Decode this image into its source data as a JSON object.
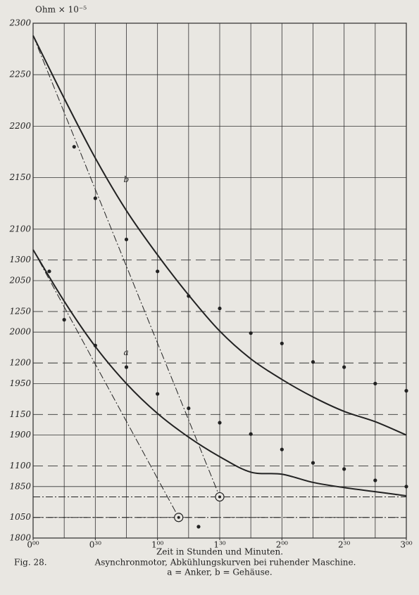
{
  "chart_data": {
    "type": "line",
    "ylabel": "Ohm × 10⁻⁵",
    "xlabel": "Zeit in Stunden und Minuten.",
    "caption_fig": "Fig. 28.",
    "caption_title": "Asynchronmotor, Abkühlungskurven bei ruhender Maschine.",
    "caption_legend": "a = Anker, b = Gehäuse.",
    "xlim": [
      0,
      3
    ],
    "xticks": [
      {
        "value": 0,
        "label": "0⁰⁰"
      },
      {
        "value": 0.5,
        "label": "0³⁰"
      },
      {
        "value": 1,
        "label": "1⁰⁰"
      },
      {
        "value": 1.5,
        "label": "1³⁰"
      },
      {
        "value": 2,
        "label": "2⁰⁰"
      },
      {
        "value": 2.5,
        "label": "2³⁰"
      },
      {
        "value": 3,
        "label": "3⁰⁰"
      }
    ],
    "xgrid": [
      0,
      0.25,
      0.5,
      0.75,
      1,
      1.25,
      1.5,
      1.75,
      2,
      2.25,
      2.5,
      2.75,
      3
    ],
    "ylim": [
      1800,
      2300
    ],
    "yticks": [
      2300,
      2250,
      2200,
      2150,
      2100,
      2050,
      2000,
      1950,
      1900,
      1850,
      1800
    ],
    "y2lim": [
      1030,
      1530
    ],
    "y2ticks": [
      1300,
      1250,
      1200,
      1150,
      1100,
      1050
    ],
    "grid": true,
    "series": [
      {
        "name": "b",
        "color": "#222",
        "axis": "y",
        "x": [
          0,
          0.25,
          0.5,
          0.75,
          1,
          1.25,
          1.5,
          1.75,
          2,
          2.25,
          2.5,
          2.75,
          3
        ],
        "values": [
          2288,
          2227,
          2169,
          2118,
          2075,
          2036,
          2001,
          1974,
          1954,
          1937,
          1923,
          1913,
          1900
        ],
        "points_x": [
          0.33,
          0.5,
          0.75,
          1,
          1.25,
          1.5,
          1.75,
          2,
          2.25,
          2.5,
          2.75,
          3
        ],
        "points": [
          2180,
          2130,
          2090,
          2059,
          2035,
          2023,
          1999,
          1989,
          1971,
          1966,
          1950,
          1943
        ]
      },
      {
        "name": "a",
        "color": "#222",
        "axis": "y2",
        "x": [
          0,
          0.25,
          0.5,
          0.75,
          1,
          1.25,
          1.5,
          1.75,
          2,
          2.25,
          2.5,
          2.75,
          3
        ],
        "values": [
          1310,
          1260,
          1216,
          1180,
          1151,
          1128,
          1109,
          1094,
          1092,
          1084,
          1079,
          1075,
          1071
        ],
        "points_x": [
          0.13,
          0.25,
          0.5,
          0.75,
          1,
          1.25,
          1.33,
          1.5,
          1.75,
          2,
          2.25,
          2.5,
          2.75,
          3
        ],
        "points": [
          1289,
          1242,
          1217,
          1196,
          1170,
          1156,
          1041,
          1142,
          1131,
          1116,
          1103,
          1097,
          1086,
          1080
        ]
      }
    ],
    "tangents": [
      {
        "axis": "y",
        "x": [
          0,
          1.5
        ],
        "values": [
          2288,
          1840
        ]
      },
      {
        "axis": "y2",
        "x": [
          0,
          1.17
        ],
        "values": [
          1310,
          1050
        ]
      }
    ]
  }
}
